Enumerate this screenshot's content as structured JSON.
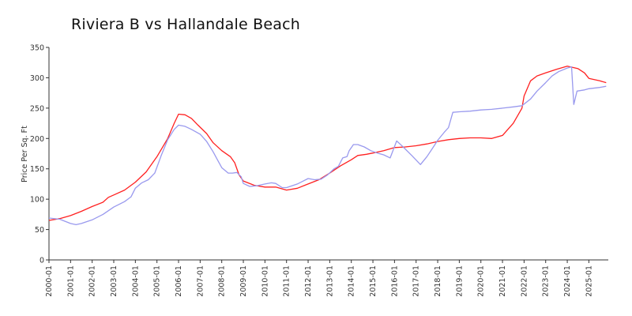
{
  "chart_data": {
    "type": "line",
    "title": "Riviera B vs Hallandale Beach",
    "xlabel": "",
    "ylabel": "Price Per Sq. Ft",
    "ylim": [
      0,
      350
    ],
    "yticks": [
      0,
      50,
      100,
      150,
      200,
      250,
      300,
      350
    ],
    "xlim": [
      2000.0,
      2025.9
    ],
    "xticks": [
      "2000-01",
      "2001-01",
      "2002-01",
      "2003-01",
      "2004-01",
      "2005-01",
      "2006-01",
      "2007-01",
      "2008-01",
      "2009-01",
      "2010-01",
      "2011-01",
      "2012-01",
      "2013-01",
      "2014-01",
      "2015-01",
      "2016-01",
      "2017-01",
      "2018-01",
      "2019-01",
      "2020-01",
      "2021-01",
      "2022-01",
      "2023-01",
      "2024-01",
      "2025-01"
    ],
    "grid": false,
    "legend": "none",
    "series": [
      {
        "color": "#ff2020",
        "points": [
          [
            2000.0,
            65
          ],
          [
            2000.5,
            68
          ],
          [
            2001.0,
            73
          ],
          [
            2001.5,
            80
          ],
          [
            2002.0,
            88
          ],
          [
            2002.5,
            95
          ],
          [
            2002.75,
            103
          ],
          [
            2003.0,
            107
          ],
          [
            2003.5,
            115
          ],
          [
            2004.0,
            128
          ],
          [
            2004.5,
            145
          ],
          [
            2005.0,
            170
          ],
          [
            2005.5,
            200
          ],
          [
            2005.8,
            225
          ],
          [
            2006.0,
            240
          ],
          [
            2006.3,
            239
          ],
          [
            2006.6,
            233
          ],
          [
            2006.9,
            222
          ],
          [
            2007.3,
            208
          ],
          [
            2007.6,
            193
          ],
          [
            2008.0,
            180
          ],
          [
            2008.4,
            170
          ],
          [
            2008.6,
            160
          ],
          [
            2008.8,
            140
          ],
          [
            2009.0,
            130
          ],
          [
            2009.5,
            123
          ],
          [
            2010.0,
            120
          ],
          [
            2010.5,
            120
          ],
          [
            2011.0,
            115
          ],
          [
            2011.5,
            118
          ],
          [
            2012.0,
            125
          ],
          [
            2012.5,
            132
          ],
          [
            2013.0,
            143
          ],
          [
            2013.5,
            155
          ],
          [
            2014.0,
            165
          ],
          [
            2014.3,
            172
          ],
          [
            2014.7,
            174
          ],
          [
            2015.0,
            176
          ],
          [
            2015.5,
            180
          ],
          [
            2016.0,
            185
          ],
          [
            2016.5,
            186
          ],
          [
            2017.0,
            188
          ],
          [
            2017.5,
            191
          ],
          [
            2018.0,
            195
          ],
          [
            2018.5,
            198
          ],
          [
            2019.0,
            200
          ],
          [
            2019.5,
            201
          ],
          [
            2020.0,
            201
          ],
          [
            2020.5,
            200
          ],
          [
            2021.0,
            205
          ],
          [
            2021.5,
            225
          ],
          [
            2021.9,
            250
          ],
          [
            2022.0,
            270
          ],
          [
            2022.3,
            295
          ],
          [
            2022.6,
            303
          ],
          [
            2023.0,
            308
          ],
          [
            2023.5,
            314
          ],
          [
            2024.0,
            319
          ],
          [
            2024.5,
            315
          ],
          [
            2024.8,
            308
          ],
          [
            2025.0,
            299
          ],
          [
            2025.5,
            295
          ],
          [
            2025.8,
            292
          ]
        ]
      },
      {
        "color": "#9999ee",
        "points": [
          [
            2000.0,
            69
          ],
          [
            2000.5,
            67
          ],
          [
            2001.0,
            60
          ],
          [
            2001.25,
            58
          ],
          [
            2001.5,
            60
          ],
          [
            2002.0,
            66
          ],
          [
            2002.5,
            75
          ],
          [
            2003.0,
            87
          ],
          [
            2003.5,
            96
          ],
          [
            2003.8,
            104
          ],
          [
            2004.0,
            118
          ],
          [
            2004.3,
            127
          ],
          [
            2004.6,
            132
          ],
          [
            2004.9,
            143
          ],
          [
            2005.2,
            172
          ],
          [
            2005.5,
            198
          ],
          [
            2005.8,
            215
          ],
          [
            2006.0,
            222
          ],
          [
            2006.3,
            220
          ],
          [
            2006.6,
            215
          ],
          [
            2007.0,
            207
          ],
          [
            2007.3,
            195
          ],
          [
            2007.6,
            178
          ],
          [
            2007.8,
            165
          ],
          [
            2008.0,
            152
          ],
          [
            2008.3,
            143
          ],
          [
            2008.5,
            143
          ],
          [
            2008.7,
            144
          ],
          [
            2008.9,
            137
          ],
          [
            2009.0,
            126
          ],
          [
            2009.3,
            121
          ],
          [
            2009.6,
            122
          ],
          [
            2010.0,
            125
          ],
          [
            2010.3,
            127
          ],
          [
            2010.5,
            126
          ],
          [
            2010.8,
            119
          ],
          [
            2011.0,
            119
          ],
          [
            2011.5,
            125
          ],
          [
            2012.0,
            134
          ],
          [
            2012.3,
            132
          ],
          [
            2012.6,
            133
          ],
          [
            2012.9,
            140
          ],
          [
            2013.2,
            150
          ],
          [
            2013.4,
            154
          ],
          [
            2013.6,
            168
          ],
          [
            2013.8,
            170
          ],
          [
            2013.9,
            180
          ],
          [
            2014.1,
            190
          ],
          [
            2014.3,
            190
          ],
          [
            2014.6,
            186
          ],
          [
            2014.9,
            180
          ],
          [
            2015.2,
            176
          ],
          [
            2015.5,
            173
          ],
          [
            2015.8,
            168
          ],
          [
            2016.1,
            196
          ],
          [
            2016.4,
            186
          ],
          [
            2016.8,
            172
          ],
          [
            2017.2,
            157
          ],
          [
            2017.5,
            170
          ],
          [
            2017.8,
            186
          ],
          [
            2018.0,
            197
          ],
          [
            2018.3,
            210
          ],
          [
            2018.5,
            218
          ],
          [
            2018.7,
            243
          ],
          [
            2019.0,
            244
          ],
          [
            2019.5,
            245
          ],
          [
            2020.0,
            247
          ],
          [
            2020.5,
            248
          ],
          [
            2021.0,
            250
          ],
          [
            2021.5,
            252
          ],
          [
            2021.9,
            254
          ],
          [
            2022.3,
            265
          ],
          [
            2022.6,
            278
          ],
          [
            2023.0,
            292
          ],
          [
            2023.3,
            303
          ],
          [
            2023.6,
            310
          ],
          [
            2024.0,
            316
          ],
          [
            2024.2,
            318
          ],
          [
            2024.3,
            256
          ],
          [
            2024.45,
            278
          ],
          [
            2024.8,
            280
          ],
          [
            2025.0,
            282
          ],
          [
            2025.5,
            284
          ],
          [
            2025.8,
            286
          ]
        ]
      }
    ]
  }
}
